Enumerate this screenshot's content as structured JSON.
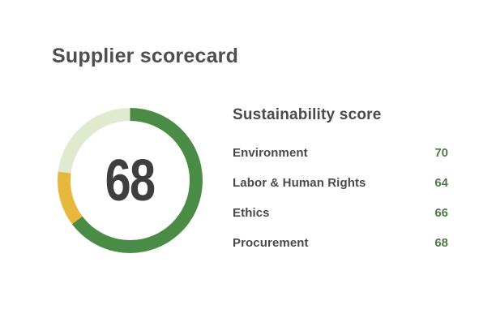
{
  "page": {
    "title": "Supplier scorecard",
    "background": "#ffffff"
  },
  "chart_data": {
    "type": "pie",
    "subtype": "donut-gauge",
    "title": "Supplier scorecard",
    "center_value": 68,
    "categories": [
      "Environment",
      "Labor & Human Rights",
      "Ethics",
      "Procurement"
    ],
    "values": [
      70,
      64,
      66,
      68
    ],
    "segments": [
      {
        "name": "dark-green-segment",
        "color": "#4a8c45",
        "start_deg": 0,
        "end_deg": 233
      },
      {
        "name": "amber-segment",
        "color": "#e8b83e",
        "start_deg": 233,
        "end_deg": 277
      },
      {
        "name": "light-green-segment",
        "color": "#dfeacf",
        "start_deg": 277,
        "end_deg": 360
      }
    ],
    "ring_thickness_px": 16,
    "legend_position": "none",
    "grid": false
  },
  "gauge": {
    "score": "68",
    "score_color": "#3e3e3e"
  },
  "scores": {
    "heading": "Sustainability score",
    "value_color": "#4f7b47",
    "rows": [
      {
        "label": "Environment",
        "value": "70"
      },
      {
        "label": "Labor & Human Rights",
        "value": "64"
      },
      {
        "label": "Ethics",
        "value": "66"
      },
      {
        "label": "Procurement",
        "value": "68"
      }
    ]
  }
}
